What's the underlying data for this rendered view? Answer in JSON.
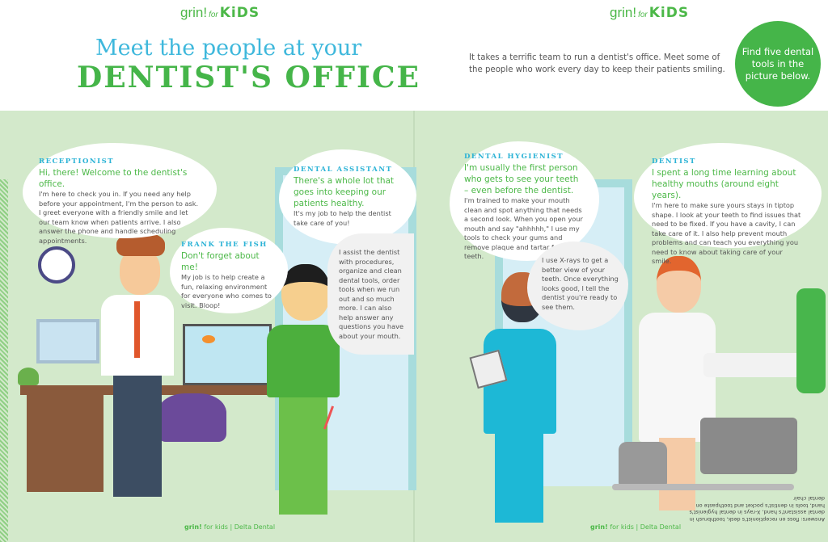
{
  "left_page": {
    "logo": {
      "brand": "grin!",
      "for": "for",
      "kids": "KiDS"
    },
    "title_line1": "Meet the people at your",
    "title_line2": "DENTIST'S OFFICE",
    "footer": {
      "brand": "grin!",
      "for_kids": "for kids",
      "publisher": "Delta Dental"
    }
  },
  "right_page": {
    "logo": {
      "brand": "grin!",
      "for": "for",
      "kids": "KiDS"
    },
    "intro": "It takes a terrific team to run a dentist's office. Meet some of the people who work every day to keep their patients smiling.",
    "callout": "Find five dental tools in the picture below.",
    "answers": "Answers: floss on receptionist's desk, toothbrush in dental assistant's hand, X-rays in dental hygienist's hand, tools in dentist's pocket and toothpaste on dental chair",
    "footer": {
      "brand": "grin!",
      "for_kids": "for kids",
      "publisher": "Delta Dental"
    }
  },
  "characters": {
    "receptionist": {
      "role": "RECEPTIONIST",
      "lead": "Hi, there! Welcome to the dentist's office.",
      "body": "I'm here to check you in. If you need any help before your appointment, I'm the person to ask. I greet everyone with a friendly smile and let our team know when patients arrive. I also answer the phone and handle scheduling appointments."
    },
    "fish": {
      "role": "FRANK THE FISH",
      "lead": "Don't forget about me!",
      "body": "My job is to help create a fun, relaxing environment for everyone who comes to visit. Bloop!"
    },
    "assistant": {
      "role": "DENTAL ASSISTANT",
      "lead": "There's a whole lot that goes into keeping our patients healthy.",
      "body": "It's my job to help the dentist take care of you!",
      "body2": "I assist the dentist with procedures, organize and clean dental tools, order tools when we run out and so much more. I can also help answer any questions you have about your mouth."
    },
    "hygienist": {
      "role": "DENTAL HYGIENIST",
      "lead": "I'm usually the first person who gets to see your teeth – even before the dentist.",
      "body": "I'm trained to make your mouth clean and spot anything that needs a second look. When you open your mouth and say \"ahhhhh,\" I use my tools to check your gums and remove plaque and tartar from your teeth.",
      "body2": "I use X-rays to get a better view of your teeth. Once everything looks good, I tell the dentist you're ready to see them."
    },
    "dentist": {
      "role": "DENTIST",
      "lead": "I spent a long time learning about healthy mouths (around eight years).",
      "body": "I'm here to make sure yours stays in tiptop shape. I look at your teeth to find issues that need to be fixed. If you have a cavity, I can take care of it. I also help prevent mouth problems and can teach you everything you need to know about taking care of your smile."
    }
  },
  "colors": {
    "green": "#45b549",
    "blue": "#2cb3d6",
    "background": "#d3e9cb"
  }
}
